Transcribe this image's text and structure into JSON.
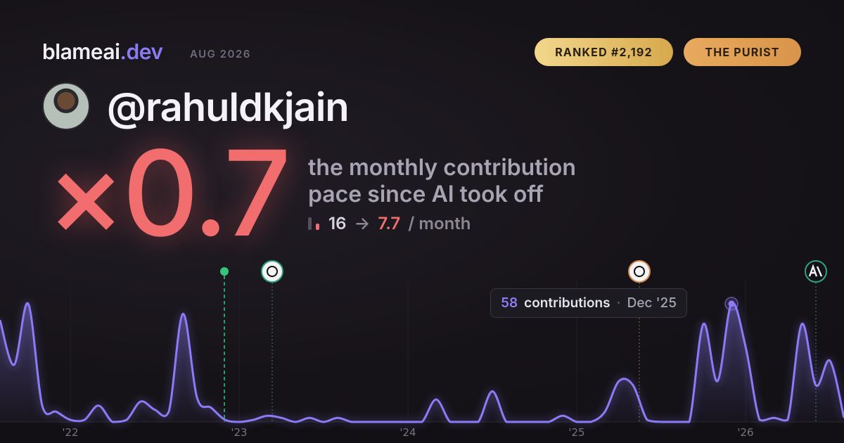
{
  "header": {
    "brand": "blameai",
    "brand_tld": ".dev",
    "period": "AUG 2026",
    "badges": [
      "RANKED #2,192",
      "THE PURIST"
    ]
  },
  "profile": {
    "handle": "@rahuldkjain"
  },
  "hero": {
    "multiplier": "×0.7",
    "caption_line1": "the monthly contribution",
    "caption_line2": "pace since AI took off",
    "before": 16,
    "arrow": "→",
    "after": 7.7,
    "unit": "/ month"
  },
  "chart_data": {
    "type": "line",
    "color": "#8b7cf6",
    "x": [
      2021.5833,
      2021.6667,
      2021.75,
      2021.8333,
      2021.9167,
      2022,
      2022.0833,
      2022.1667,
      2022.25,
      2022.3333,
      2022.4167,
      2022.5,
      2022.5833,
      2022.6667,
      2022.75,
      2022.8333,
      2022.9167,
      2023,
      2023.0833,
      2023.1667,
      2023.25,
      2023.3333,
      2023.4167,
      2023.5,
      2023.5833,
      2023.6667,
      2023.75,
      2023.8333,
      2023.9167,
      2024,
      2024.0833,
      2024.1667,
      2024.25,
      2024.3333,
      2024.4167,
      2024.5,
      2024.5833,
      2024.6667,
      2024.75,
      2024.8333,
      2024.9167,
      2025,
      2025.0833,
      2025.1667,
      2025.25,
      2025.3333,
      2025.4167,
      2025.5,
      2025.5833,
      2025.6667,
      2025.75,
      2025.8333,
      2025.9167,
      2026,
      2026.0833,
      2026.1667,
      2026.25,
      2026.3333,
      2026.4167,
      2026.5,
      2026.5833
    ],
    "values": [
      50,
      28,
      58,
      8,
      5,
      1,
      1,
      8,
      0,
      1,
      10,
      6,
      5,
      53,
      12,
      7,
      1,
      0,
      1,
      3,
      2,
      0,
      2,
      0,
      2,
      0,
      0,
      0,
      0,
      0,
      0,
      11,
      0,
      0,
      0,
      15,
      0,
      0,
      0,
      0,
      3,
      0,
      0,
      5,
      20,
      18,
      1,
      0,
      0,
      0,
      48,
      20,
      58,
      37,
      1,
      2,
      1,
      48,
      18,
      30,
      2
    ],
    "xlim": [
      2021.5833,
      2026.5833
    ],
    "xticks": [
      {
        "value": 2022,
        "label": "'22"
      },
      {
        "value": 2023,
        "label": "'23"
      },
      {
        "value": 2024,
        "label": "'24"
      },
      {
        "value": 2025,
        "label": "'25"
      },
      {
        "value": 2026,
        "label": "'26"
      }
    ],
    "ylim": [
      0,
      69
    ],
    "grid": true,
    "tooltip": {
      "label": "contributions",
      "separator": "·",
      "date": "Dec '25"
    }
  }
}
